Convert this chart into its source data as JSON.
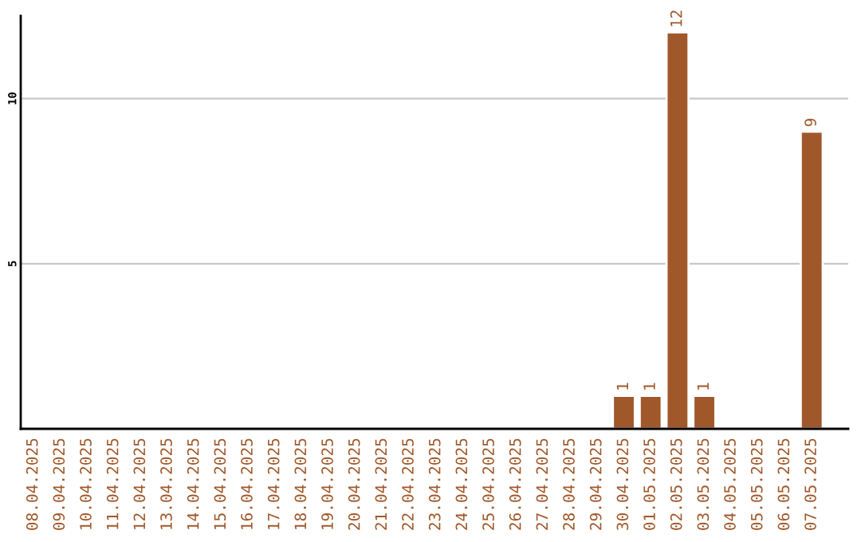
{
  "chart_data": {
    "type": "bar",
    "categories": [
      "08.04.2025",
      "09.04.2025",
      "10.04.2025",
      "11.04.2025",
      "12.04.2025",
      "13.04.2025",
      "14.04.2025",
      "15.04.2025",
      "16.04.2025",
      "17.04.2025",
      "18.04.2025",
      "19.04.2025",
      "20.04.2025",
      "21.04.2025",
      "22.04.2025",
      "23.04.2025",
      "24.04.2025",
      "25.04.2025",
      "26.04.2025",
      "27.04.2025",
      "28.04.2025",
      "29.04.2025",
      "30.04.2025",
      "01.05.2025",
      "02.05.2025",
      "03.05.2025",
      "04.05.2025",
      "05.05.2025",
      "06.05.2025",
      "07.05.2025"
    ],
    "values": [
      null,
      null,
      null,
      null,
      null,
      null,
      null,
      null,
      null,
      null,
      null,
      null,
      null,
      null,
      null,
      null,
      null,
      null,
      null,
      null,
      null,
      null,
      1,
      1,
      12,
      1,
      null,
      null,
      null,
      9
    ],
    "value_labels": [
      null,
      null,
      null,
      null,
      null,
      null,
      null,
      null,
      null,
      null,
      null,
      null,
      null,
      null,
      null,
      null,
      null,
      null,
      null,
      null,
      null,
      null,
      "1",
      "1",
      "12",
      "1",
      null,
      null,
      null,
      "9"
    ],
    "color": "#a0582a",
    "ylim": [
      0,
      12.5
    ],
    "yticks": [
      5,
      10
    ],
    "grid": "y",
    "legend": false
  }
}
